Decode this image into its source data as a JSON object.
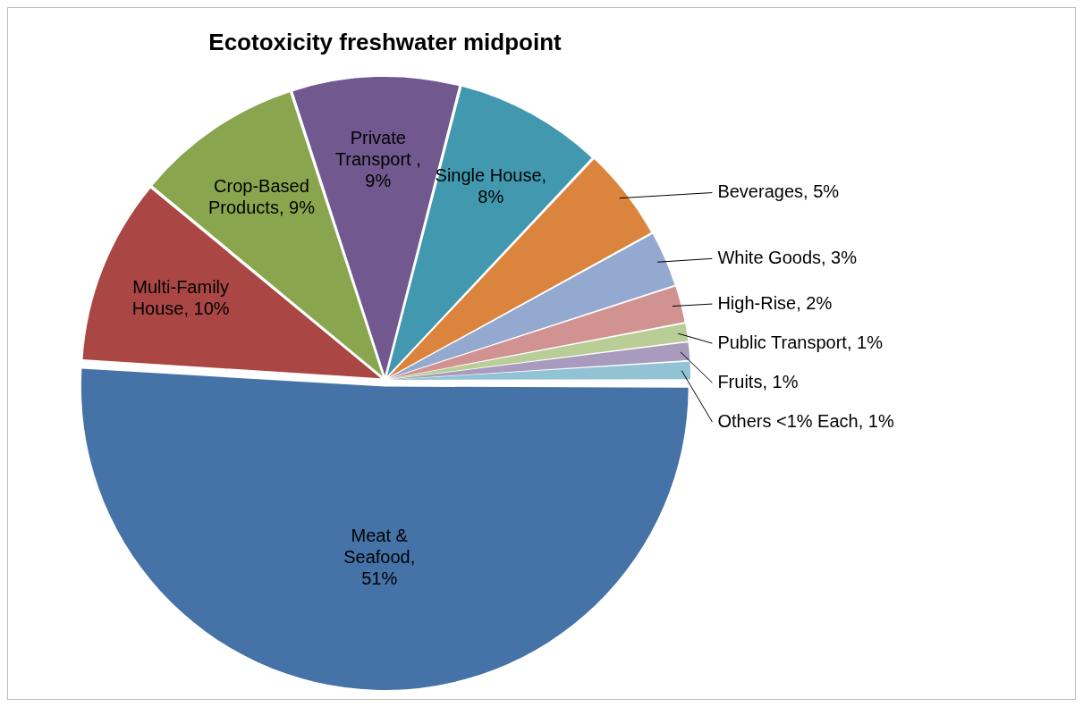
{
  "chart_data": {
    "type": "pie",
    "title": "Ecotoxicity freshwater midpoint",
    "categories": [
      "Meat & Seafood, 51%",
      "Multi-Family House, 10%",
      "Crop-Based Products, 9%",
      "Private Transport , 9%",
      "Single House, 8%",
      "Beverages, 5%",
      "White Goods, 3%",
      "High-Rise, 2%",
      "Public Transport, 1%",
      "Fruits, 1%",
      "Others <1% Each, 1%"
    ],
    "values": [
      51,
      10,
      9,
      9,
      8,
      5,
      3,
      2,
      1,
      1,
      1
    ],
    "colors": [
      "#4572a7",
      "#aa4643",
      "#89a54e",
      "#71588f",
      "#4198af",
      "#db843d",
      "#93a9cf",
      "#d19392",
      "#b9cd96",
      "#a99bbd",
      "#91c3d5"
    ],
    "legend": false
  }
}
